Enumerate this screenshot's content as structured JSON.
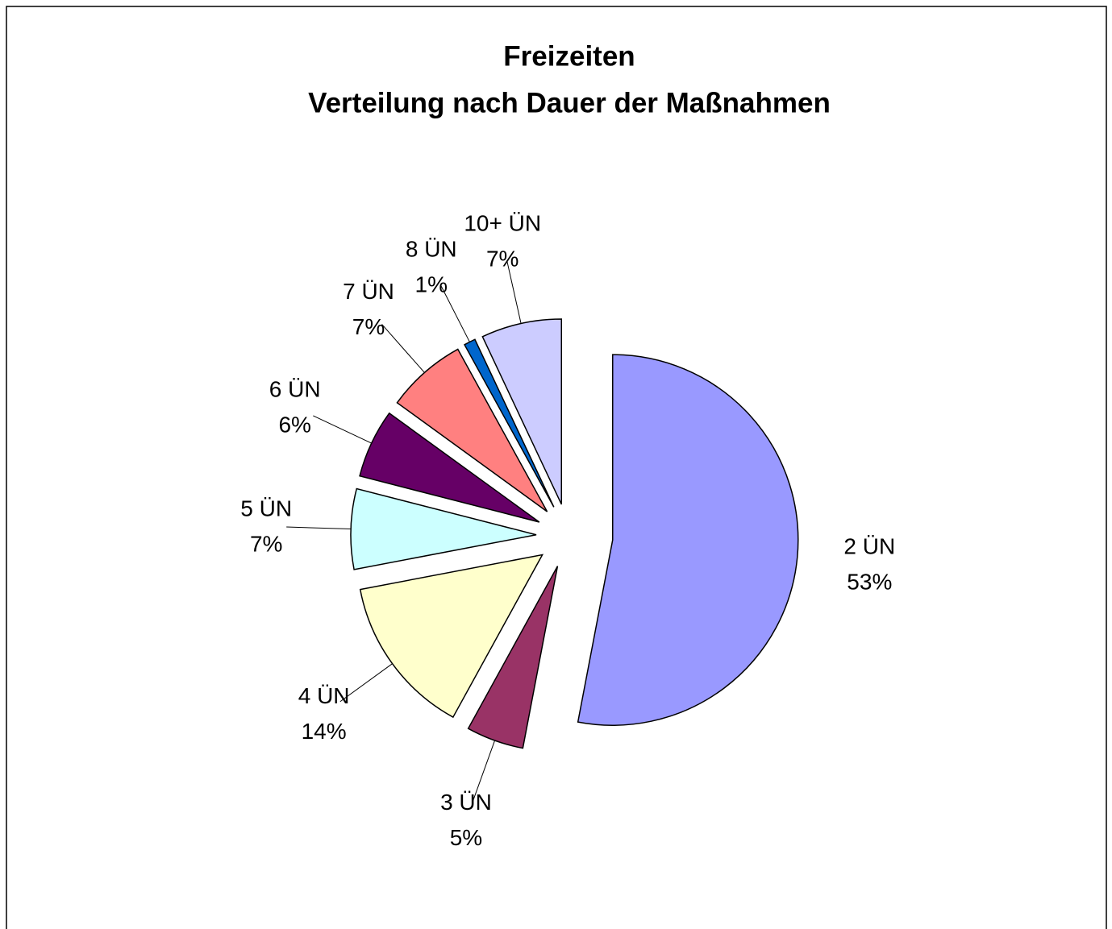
{
  "chart_data": {
    "type": "pie",
    "title": [
      "Freizeiten",
      "Verteilung nach Dauer der Maßnahmen"
    ],
    "categories": [
      "2  ÜN",
      "3  ÜN",
      "4  ÜN",
      "5  ÜN",
      "6  ÜN",
      "7  ÜN",
      "8  ÜN",
      "10+  ÜN"
    ],
    "values": [
      53,
      5,
      14,
      7,
      6,
      7,
      1,
      7
    ],
    "value_labels": [
      "53%",
      "5%",
      "14%",
      "7%",
      "6%",
      "7%",
      "1%",
      "7%"
    ],
    "colors": [
      "#9999ff",
      "#993366",
      "#ffffcc",
      "#ccffff",
      "#660066",
      "#ff8080",
      "#0066cc",
      "#ccccff"
    ]
  }
}
